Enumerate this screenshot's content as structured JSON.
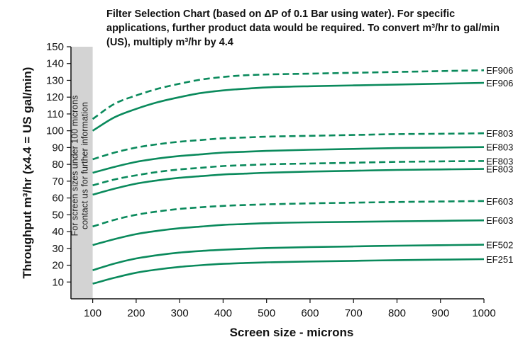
{
  "chart_data": {
    "type": "line",
    "title": "Filter Selection Chart (based on ΔP of 0.1 Bar using water). For specific applications, further product data would be required. To convert m³/hr to gal/min (US), multiply m³/hr by 4.4",
    "xlabel": "Screen size - microns",
    "ylabel": "Throughput m³/hr (x4.4 = US gal/min)",
    "xlim": [
      50,
      1000
    ],
    "ylim": [
      0,
      150
    ],
    "xticks": [
      100,
      200,
      300,
      400,
      500,
      600,
      700,
      800,
      900,
      1000
    ],
    "yticks": [
      10,
      20,
      30,
      40,
      50,
      60,
      70,
      80,
      90,
      100,
      110,
      120,
      130,
      140,
      150
    ],
    "shaded_note": {
      "x_range": [
        50,
        100
      ],
      "text_line1": "For screen sizes under 100 microns",
      "text_line2": "contact us for further information"
    },
    "line_color": "#0a8a5c",
    "x": [
      100,
      150,
      200,
      250,
      300,
      350,
      400,
      450,
      500,
      600,
      700,
      800,
      900,
      1000
    ],
    "series": [
      {
        "name": "EF906",
        "style": "dashed",
        "values": [
          107,
          116,
          121,
          125,
          128,
          130.5,
          132,
          133,
          133.5,
          134,
          134.5,
          135,
          135.5,
          136
        ]
      },
      {
        "name": "EF906",
        "style": "solid",
        "values": [
          100,
          108,
          113,
          117,
          120,
          122.5,
          124,
          125,
          125.8,
          126.5,
          127,
          127.5,
          128,
          128.5
        ]
      },
      {
        "name": "EF803",
        "style": "dashed",
        "values": [
          83,
          87,
          90,
          92,
          93.5,
          94.5,
          95.5,
          96,
          96.5,
          97,
          97.5,
          98,
          98.2,
          98.5
        ]
      },
      {
        "name": "EF803",
        "style": "solid",
        "values": [
          75,
          78.5,
          81.5,
          83.5,
          85,
          86,
          87,
          87.5,
          88,
          88.7,
          89.2,
          89.7,
          90,
          90.3
        ]
      },
      {
        "name": "EF803",
        "style": "dashed",
        "values": [
          67.5,
          71,
          73.5,
          75.5,
          77,
          78,
          79,
          79.5,
          80,
          80.5,
          81,
          81.5,
          81.8,
          82
        ]
      },
      {
        "name": "EF803",
        "style": "solid",
        "values": [
          62,
          65.5,
          68.5,
          70.5,
          72,
          73,
          74,
          74.5,
          75,
          75.7,
          76.2,
          76.7,
          77,
          77.3
        ]
      },
      {
        "name": "EF603",
        "style": "dashed",
        "values": [
          43,
          47,
          50,
          52,
          53.5,
          54.5,
          55.3,
          55.8,
          56.2,
          56.8,
          57.2,
          57.6,
          57.9,
          58.2
        ]
      },
      {
        "name": "EF603",
        "style": "solid",
        "values": [
          32,
          35.5,
          38.5,
          40.5,
          42,
          43,
          44,
          44.5,
          45,
          45.5,
          45.8,
          46.1,
          46.4,
          46.7
        ]
      },
      {
        "name": "EF502",
        "style": "solid",
        "values": [
          17,
          21,
          24,
          26,
          27.5,
          28.5,
          29.2,
          29.8,
          30.2,
          30.8,
          31.2,
          31.6,
          31.9,
          32.2
        ]
      },
      {
        "name": "EF251",
        "style": "solid",
        "values": [
          9,
          12.5,
          15.5,
          17.5,
          19,
          20,
          20.8,
          21.3,
          21.7,
          22.2,
          22.6,
          23,
          23.3,
          23.6
        ]
      }
    ]
  }
}
